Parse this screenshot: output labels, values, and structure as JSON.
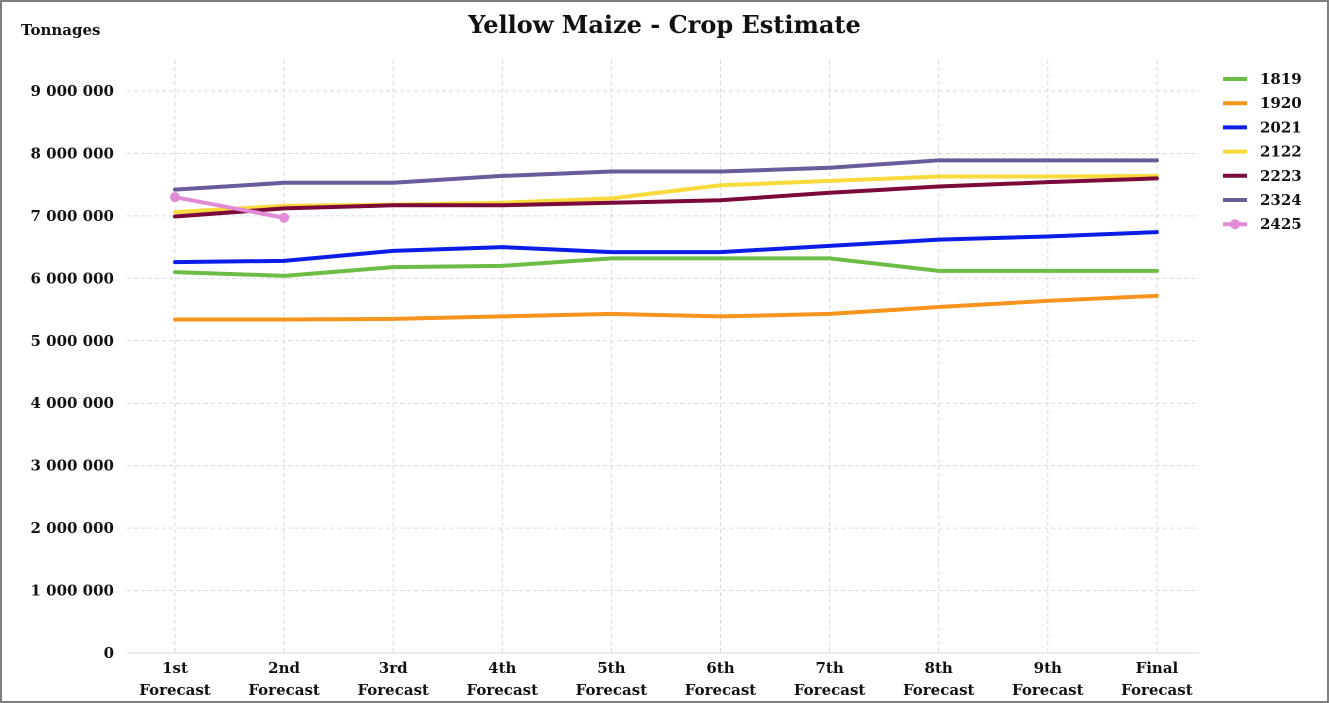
{
  "chart_data": {
    "type": "line",
    "title": "Yellow Maize - Crop Estimate",
    "ylabel": "Tonnages",
    "xlabel": "",
    "categories": [
      [
        "1st",
        "Forecast"
      ],
      [
        "2nd",
        "Forecast"
      ],
      [
        "3rd",
        "Forecast"
      ],
      [
        "4th",
        "Forecast"
      ],
      [
        "5th",
        "Forecast"
      ],
      [
        "6th",
        "Forecast"
      ],
      [
        "7th",
        "Forecast"
      ],
      [
        "8th",
        "Forecast"
      ],
      [
        "9th",
        "Forecast"
      ],
      [
        "Final",
        "Forecast"
      ]
    ],
    "ylim": [
      0,
      9000000
    ],
    "yticks": [
      0,
      1000000,
      2000000,
      3000000,
      4000000,
      5000000,
      6000000,
      7000000,
      8000000,
      9000000
    ],
    "ytick_labels": [
      "0",
      "1 000 000",
      "2 000 000",
      "3 000 000",
      "4 000 000",
      "5 000 000",
      "6 000 000",
      "7 000 000",
      "8 000 000",
      "9 000 000"
    ],
    "grid": true,
    "legend_position": "right",
    "series": [
      {
        "name": "1819",
        "color": "#6abd45",
        "marker": false,
        "values": [
          6100000,
          6040000,
          6180000,
          6200000,
          6320000,
          6320000,
          6320000,
          6120000,
          6120000,
          6120000
        ]
      },
      {
        "name": "1920",
        "color": "#f7941d",
        "marker": false,
        "values": [
          5340000,
          5340000,
          5350000,
          5390000,
          5430000,
          5390000,
          5430000,
          5540000,
          5640000,
          5720000
        ]
      },
      {
        "name": "2021",
        "color": "#0a1ee8",
        "marker": false,
        "values": [
          6260000,
          6280000,
          6440000,
          6500000,
          6420000,
          6420000,
          6520000,
          6620000,
          6670000,
          6740000
        ]
      },
      {
        "name": "2122",
        "color": "#f9da3c",
        "marker": false,
        "values": [
          7060000,
          7160000,
          7180000,
          7210000,
          7280000,
          7490000,
          7560000,
          7630000,
          7630000,
          7640000
        ]
      },
      {
        "name": "2223",
        "color": "#7b0a3b",
        "marker": false,
        "values": [
          6990000,
          7120000,
          7170000,
          7170000,
          7210000,
          7250000,
          7370000,
          7470000,
          7540000,
          7600000
        ]
      },
      {
        "name": "2324",
        "color": "#6b5b9a",
        "marker": false,
        "values": [
          7420000,
          7530000,
          7530000,
          7640000,
          7710000,
          7710000,
          7770000,
          7890000,
          7890000,
          7890000
        ]
      },
      {
        "name": "2425",
        "color": "#e18bd6",
        "marker": true,
        "values": [
          7300000,
          6970000,
          null,
          null,
          null,
          null,
          null,
          null,
          null,
          null
        ]
      }
    ]
  }
}
